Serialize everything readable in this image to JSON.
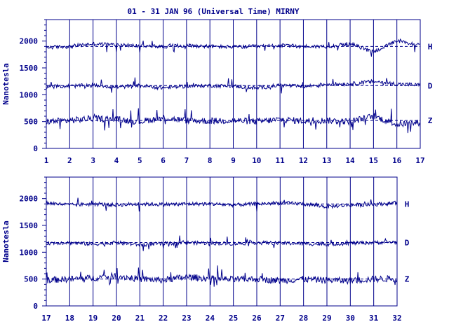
{
  "chart_data": {
    "type": "line",
    "title": "01 - 31 JAN 96 (Universal Time) MIRNY",
    "ylabel": "Nanotesla",
    "ink_color": "#00008b",
    "panels": [
      {
        "x_range": [
          1,
          17
        ],
        "x_ticks": [
          "1",
          "2",
          "3",
          "4",
          "5",
          "6",
          "7",
          "8",
          "9",
          "10",
          "11",
          "12",
          "13",
          "14",
          "15",
          "16",
          "17"
        ],
        "y_range": [
          0,
          2400
        ],
        "y_ticks": [
          "0",
          "500",
          "1000",
          "1500",
          "2000"
        ],
        "series": [
          {
            "name": "H",
            "baseline": 1900,
            "values": [
              1880,
              1900,
              1950,
              1930,
              1910,
              1900,
              1920,
              1900,
              1890,
              1900,
              1920,
              1900,
              1900,
              1950,
              1800,
              2000,
              1920
            ]
          },
          {
            "name": "D",
            "baseline": 1170,
            "values": [
              1150,
              1160,
              1180,
              1140,
              1170,
              1130,
              1160,
              1170,
              1160,
              1120,
              1180,
              1150,
              1200,
              1200,
              1250,
              1200,
              1180
            ]
          },
          {
            "name": "Z",
            "baseline": 520,
            "values": [
              500,
              520,
              560,
              540,
              500,
              570,
              520,
              510,
              520,
              500,
              540,
              510,
              520,
              500,
              600,
              450,
              480
            ]
          }
        ]
      },
      {
        "x_range": [
          17,
          32
        ],
        "x_ticks": [
          "17",
          "18",
          "19",
          "20",
          "21",
          "22",
          "23",
          "24",
          "25",
          "26",
          "27",
          "28",
          "29",
          "30",
          "31",
          "32"
        ],
        "y_range": [
          0,
          2400
        ],
        "y_ticks": [
          "0",
          "500",
          "1000",
          "1500",
          "2000"
        ],
        "series": [
          {
            "name": "H",
            "baseline": 1900,
            "values": [
              1920,
              1880,
              1900,
              1880,
              1900,
              1890,
              1900,
              1900,
              1880,
              1900,
              1920,
              1900,
              1850,
              1880,
              1890,
              1920
            ]
          },
          {
            "name": "D",
            "baseline": 1180,
            "values": [
              1170,
              1180,
              1150,
              1180,
              1140,
              1160,
              1180,
              1170,
              1160,
              1180,
              1170,
              1160,
              1150,
              1170,
              1180,
              1190
            ]
          },
          {
            "name": "Z",
            "baseline": 500,
            "values": [
              480,
              500,
              520,
              560,
              500,
              480,
              540,
              510,
              490,
              500,
              470,
              500,
              480,
              470,
              500,
              510
            ]
          }
        ]
      }
    ]
  }
}
